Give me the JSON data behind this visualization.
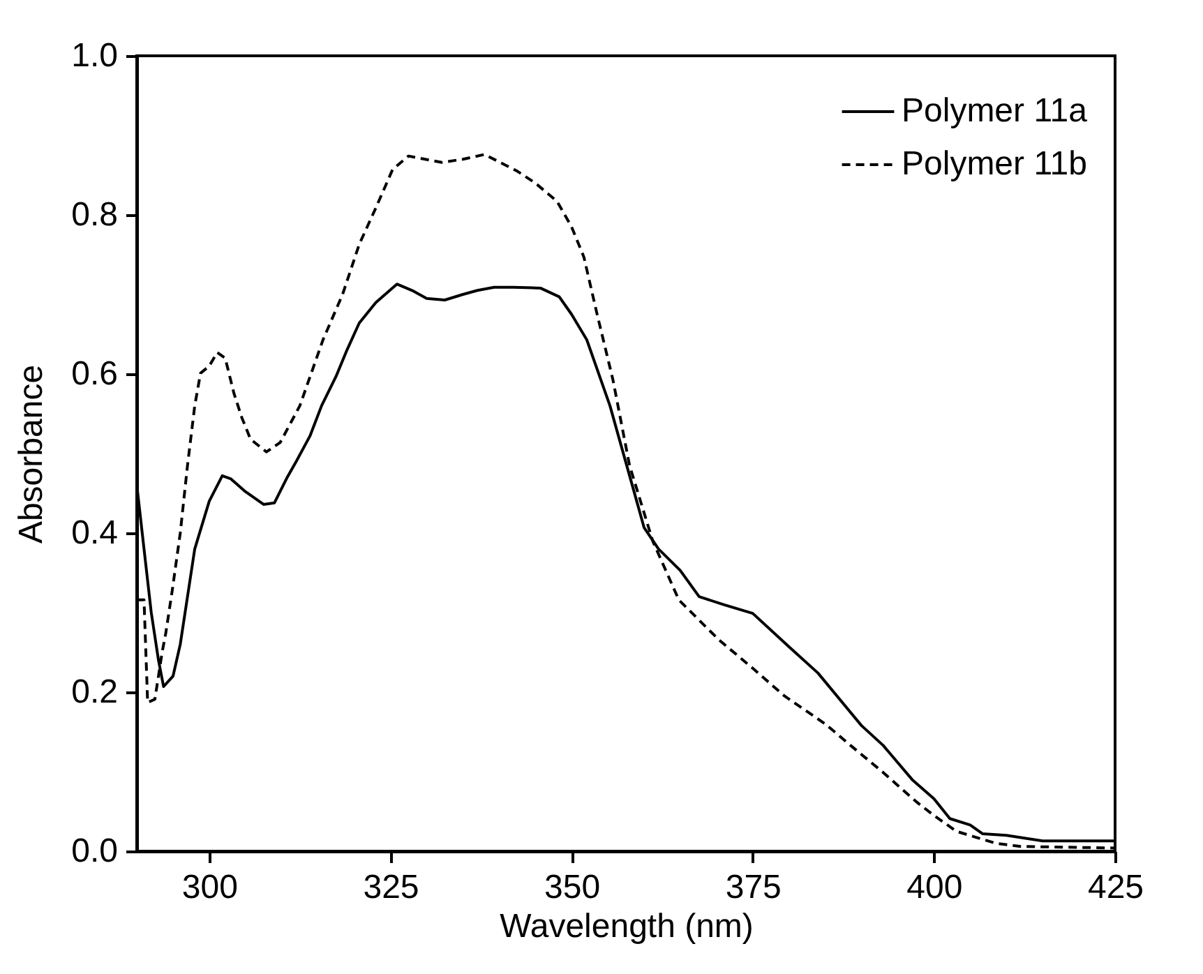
{
  "chart_data": {
    "type": "line",
    "xlabel": "Wavelength  (nm)",
    "ylabel": "Absorbance",
    "xlim": [
      290,
      425
    ],
    "xticks": [
      300,
      325,
      350,
      375,
      400,
      425
    ],
    "ylim": [
      0,
      1
    ],
    "yticks": [
      {
        "value": 0,
        "label": "0.0"
      },
      0.2,
      0.4,
      0.6,
      0.8,
      {
        "value": 1,
        "label": "1.0"
      }
    ],
    "legend": "top right",
    "grid": false,
    "series": [
      {
        "name": "Polymer 11a",
        "color": "#000000",
        "line_style": "solid",
        "x": [
          290,
          291,
          292,
          293,
          293.7,
          295,
          296,
          297,
          298,
          300,
          301.8,
          303,
          305,
          307.5,
          309,
          310.7,
          312,
          313.9,
          315.5,
          317.5,
          319,
          320.7,
          323,
          325.9,
          328,
          330,
          332.5,
          335,
          337,
          339.3,
          342,
          345.7,
          348.3,
          350,
          352.1,
          355.3,
          358.5,
          360,
          362,
          365,
          367.6,
          371,
          375,
          380,
          384,
          390,
          393,
          397,
          400,
          402.2,
          405,
          406.7,
          410,
          415,
          420,
          425
        ],
        "values": [
          0.461,
          0.38,
          0.3,
          0.24,
          0.207,
          0.22,
          0.26,
          0.32,
          0.38,
          0.44,
          0.472,
          0.468,
          0.452,
          0.436,
          0.438,
          0.469,
          0.49,
          0.522,
          0.56,
          0.597,
          0.63,
          0.664,
          0.69,
          0.713,
          0.705,
          0.695,
          0.693,
          0.7,
          0.705,
          0.709,
          0.709,
          0.708,
          0.697,
          0.675,
          0.643,
          0.56,
          0.456,
          0.407,
          0.38,
          0.353,
          0.32,
          0.31,
          0.299,
          0.257,
          0.224,
          0.158,
          0.133,
          0.09,
          0.066,
          0.041,
          0.033,
          0.022,
          0.02,
          0.013,
          0.013,
          0.013
        ]
      },
      {
        "name": "Polymer 11b",
        "color": "#000000",
        "line_style": "dashed",
        "x": [
          290,
          291,
          291.5,
          292.5,
          293.5,
          294,
          294.9,
          296,
          297,
          298,
          298.8,
          300,
          301.1,
          302.2,
          303.4,
          304.5,
          305.7,
          307.9,
          309.8,
          312.5,
          315.7,
          318.4,
          320.7,
          323,
          325.3,
          327.5,
          332.1,
          335,
          338,
          342.5,
          345,
          348,
          350,
          351.7,
          353.5,
          355.7,
          358,
          361.2,
          364.8,
          370.3,
          375,
          379.4,
          385,
          388.5,
          393,
          397.6,
          400,
          403.1,
          408.5,
          412,
          425
        ],
        "values": [
          0.316,
          0.316,
          0.187,
          0.191,
          0.25,
          0.274,
          0.328,
          0.4,
          0.485,
          0.56,
          0.601,
          0.61,
          0.627,
          0.62,
          0.576,
          0.545,
          0.518,
          0.502,
          0.514,
          0.56,
          0.643,
          0.7,
          0.763,
          0.809,
          0.857,
          0.874,
          0.866,
          0.87,
          0.876,
          0.855,
          0.84,
          0.817,
          0.785,
          0.747,
          0.676,
          0.593,
          0.485,
          0.39,
          0.316,
          0.266,
          0.23,
          0.195,
          0.16,
          0.133,
          0.099,
          0.062,
          0.045,
          0.025,
          0.01,
          0.006,
          0.004
        ]
      }
    ]
  }
}
